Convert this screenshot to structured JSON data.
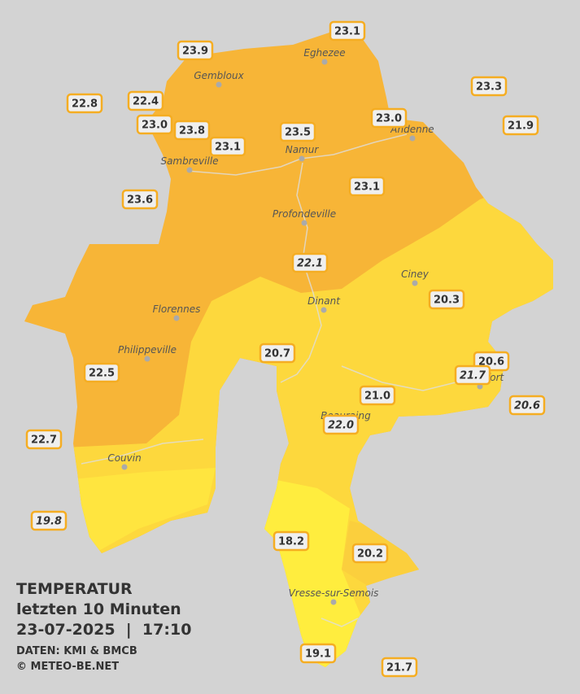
{
  "title": {
    "heading": "TEMPERATUR",
    "subheading": "letzten 10 Minuten",
    "timestamp": "23-07-2025  |  17:10",
    "source": "DATEN: KMI & BMCB",
    "copyright": "© METEO-BE.NET"
  },
  "cities": [
    "Eghezee",
    "Gembloux",
    "Andenne",
    "Namur",
    "Sambreville",
    "Profondeville",
    "Ciney",
    "Dinant",
    "Florennes",
    "Philippeville",
    "Rochefort",
    "Beauraing",
    "Couvin",
    "Vresse-sur-Semois"
  ],
  "stations": [
    {
      "value": "23.1"
    },
    {
      "value": "23.9"
    },
    {
      "value": "23.3"
    },
    {
      "value": "22.8"
    },
    {
      "value": "22.4"
    },
    {
      "value": "23.0"
    },
    {
      "value": "23.8"
    },
    {
      "value": "23.1"
    },
    {
      "value": "23.5"
    },
    {
      "value": "23.0"
    },
    {
      "value": "21.9"
    },
    {
      "value": "23.1"
    },
    {
      "value": "23.6"
    },
    {
      "value": "22.1",
      "italic": true
    },
    {
      "value": "20.3"
    },
    {
      "value": "20.7"
    },
    {
      "value": "20.6"
    },
    {
      "value": "21.7",
      "italic": true
    },
    {
      "value": "22.5"
    },
    {
      "value": "21.0"
    },
    {
      "value": "22.0",
      "italic": true
    },
    {
      "value": "20.6",
      "italic": true
    },
    {
      "value": "22.7"
    },
    {
      "value": "19.8",
      "italic": true
    },
    {
      "value": "18.2"
    },
    {
      "value": "20.2"
    },
    {
      "value": "19.1"
    },
    {
      "value": "21.7"
    }
  ]
}
